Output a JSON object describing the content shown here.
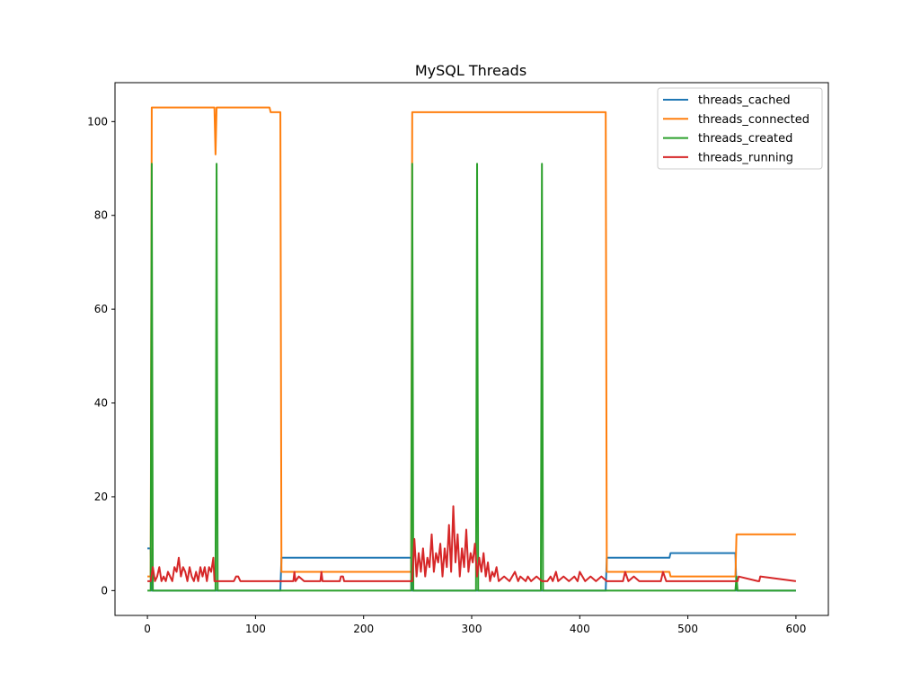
{
  "chart_data": {
    "type": "line",
    "title": "MySQL Threads",
    "xlabel": "",
    "ylabel": "",
    "xlim": [
      -30,
      630
    ],
    "ylim": [
      -5.3,
      108.3
    ],
    "xticks": [
      0,
      100,
      200,
      300,
      400,
      500,
      600
    ],
    "yticks": [
      0,
      20,
      40,
      60,
      80,
      100
    ],
    "grid": false,
    "legend_position": "top-right",
    "series": [
      {
        "name": "threads_cached",
        "color": "#1f77b4",
        "x": [
          0,
          3,
          4,
          62,
          63,
          64,
          122,
          123,
          124,
          243,
          244,
          245,
          423,
          424,
          425,
          483,
          484,
          543,
          544,
          545,
          600
        ],
        "y": [
          9,
          9,
          0,
          0,
          0,
          0,
          0,
          0,
          7,
          7,
          7,
          0,
          0,
          0,
          7,
          7,
          8,
          8,
          8,
          0,
          0
        ]
      },
      {
        "name": "threads_connected",
        "color": "#ff7f0e",
        "x": [
          0,
          3,
          4,
          62,
          63,
          64,
          113,
          114,
          122,
          123,
          124,
          243,
          244,
          245,
          423,
          424,
          425,
          483,
          484,
          543,
          544,
          545,
          600
        ],
        "y": [
          3,
          3,
          103,
          103,
          93,
          103,
          103,
          102,
          102,
          102,
          4,
          4,
          4,
          102,
          102,
          102,
          4,
          4,
          3,
          3,
          3,
          12,
          12
        ]
      },
      {
        "name": "threads_created",
        "color": "#2ca02c",
        "x": [
          0,
          3,
          4,
          5,
          62,
          63,
          64,
          65,
          243,
          244,
          245,
          246,
          303,
          304,
          305,
          306,
          363,
          364,
          365,
          366,
          543,
          544,
          545,
          546,
          600
        ],
        "y": [
          0,
          0,
          91,
          0,
          0,
          0,
          91,
          0,
          0,
          0,
          91,
          0,
          0,
          0,
          91,
          0,
          0,
          0,
          91,
          0,
          0,
          0,
          3,
          0,
          0
        ]
      },
      {
        "name": "threads_running",
        "color": "#d62728",
        "x": [
          0,
          3,
          5,
          7,
          9,
          11,
          13,
          15,
          17,
          19,
          21,
          23,
          25,
          27,
          29,
          31,
          33,
          35,
          37,
          39,
          41,
          43,
          45,
          47,
          49,
          51,
          53,
          55,
          57,
          59,
          61,
          62,
          64,
          66,
          80,
          82,
          84,
          86,
          88,
          120,
          125,
          130,
          135,
          136,
          137,
          140,
          145,
          160,
          161,
          162,
          178,
          179,
          180,
          181,
          182,
          245,
          247,
          249,
          251,
          253,
          255,
          257,
          259,
          261,
          263,
          265,
          267,
          269,
          271,
          273,
          275,
          277,
          279,
          281,
          283,
          285,
          287,
          289,
          291,
          293,
          295,
          297,
          299,
          301,
          303,
          305,
          307,
          309,
          311,
          313,
          315,
          317,
          319,
          321,
          323,
          325,
          330,
          335,
          340,
          343,
          345,
          350,
          352,
          355,
          360,
          365,
          370,
          373,
          375,
          378,
          380,
          385,
          390,
          395,
          398,
          400,
          405,
          410,
          415,
          420,
          425,
          435,
          440,
          442,
          445,
          450,
          455,
          475,
          477,
          480,
          545,
          546,
          547,
          565,
          566,
          567,
          600
        ],
        "y": [
          2,
          2,
          5,
          2,
          3,
          5,
          2,
          3,
          2,
          4,
          3,
          2,
          5,
          4,
          7,
          3,
          5,
          4,
          2,
          5,
          3,
          2,
          4,
          2,
          5,
          3,
          5,
          2,
          5,
          4,
          7,
          2,
          2,
          2,
          2,
          3,
          3,
          2,
          2,
          2,
          2,
          2,
          2,
          4,
          2,
          3,
          2,
          2,
          4,
          2,
          2,
          3,
          3,
          3,
          2,
          2,
          11,
          3,
          8,
          4,
          9,
          3,
          7,
          5,
          12,
          4,
          8,
          6,
          10,
          3,
          9,
          5,
          14,
          4,
          18,
          6,
          12,
          3,
          9,
          5,
          13,
          4,
          8,
          6,
          10,
          3,
          7,
          4,
          8,
          3,
          6,
          2,
          4,
          3,
          5,
          2,
          3,
          2,
          4,
          2,
          3,
          2,
          3,
          2,
          3,
          2,
          2,
          3,
          2,
          4,
          2,
          3,
          2,
          3,
          2,
          4,
          2,
          3,
          2,
          3,
          2,
          2,
          2,
          4,
          2,
          3,
          2,
          2,
          4,
          2,
          2,
          2,
          3,
          2,
          2,
          3,
          2
        ]
      }
    ]
  }
}
